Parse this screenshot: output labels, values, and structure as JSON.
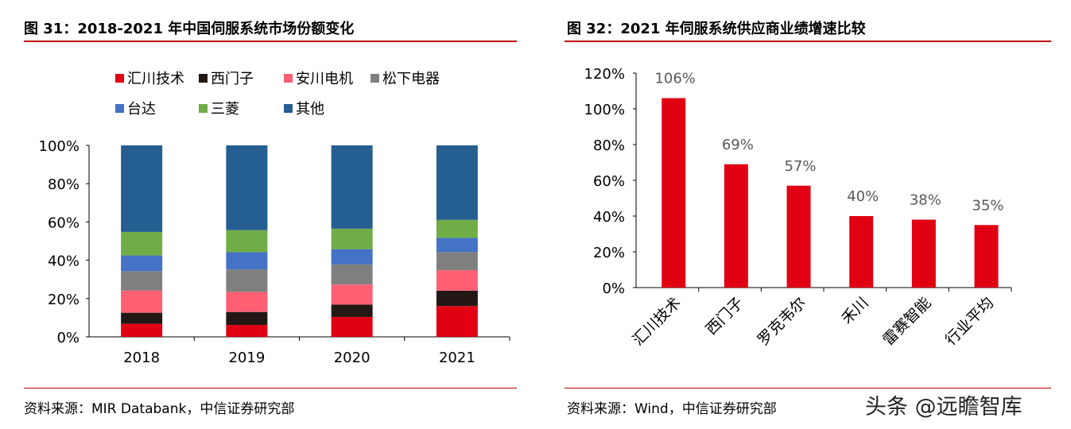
{
  "left": {
    "title": "图 31：2018-2021 年中国伺服系统市场份额变化",
    "source": "资料来源：MIR Databank，中信证券研究部"
  },
  "right": {
    "title": "图 32：2021 年伺服系统供应商业绩增速比较",
    "source": "资料来源：Wind，中信证券研究部"
  },
  "watermark": "头条 @远瞻智库",
  "colors": {
    "rule": "#c00000"
  },
  "chart_data": [
    {
      "type": "bar",
      "stacked": true,
      "categories": [
        "2018",
        "2019",
        "2020",
        "2021"
      ],
      "ylim": [
        0,
        100
      ],
      "yticks": [
        "0%",
        "20%",
        "40%",
        "60%",
        "80%",
        "100%"
      ],
      "legend": "top",
      "series": [
        {
          "name": "汇川技术",
          "color": "#e00012",
          "values": [
            6.8,
            6.2,
            10.4,
            16.1
          ]
        },
        {
          "name": "西门子",
          "color": "#231815",
          "values": [
            5.8,
            6.8,
            6.4,
            8.0
          ]
        },
        {
          "name": "安川电机",
          "color": "#ff5f73",
          "values": [
            11.6,
            10.5,
            10.5,
            10.7
          ]
        },
        {
          "name": "松下电器",
          "color": "#7f7f7f",
          "values": [
            10.1,
            11.7,
            10.5,
            9.5
          ]
        },
        {
          "name": "台达",
          "color": "#4472c4",
          "values": [
            8.2,
            9.0,
            8.0,
            7.4
          ]
        },
        {
          "name": "三菱",
          "color": "#70ad47",
          "values": [
            12.3,
            11.5,
            10.7,
            9.4
          ]
        },
        {
          "name": "其他",
          "color": "#255e91",
          "values": [
            45.2,
            44.3,
            43.5,
            38.9
          ]
        }
      ]
    },
    {
      "type": "bar",
      "categories": [
        "汇川技术",
        "西门子",
        "罗克韦尔",
        "禾川",
        "雷赛智能",
        "行业平均"
      ],
      "values": [
        106,
        69,
        57,
        40,
        38,
        35
      ],
      "labels": [
        "106%",
        "69%",
        "57%",
        "40%",
        "38%",
        "35%"
      ],
      "color": "#e00012",
      "ylim": [
        0,
        120
      ],
      "yticks": [
        "0%",
        "20%",
        "40%",
        "60%",
        "80%",
        "100%",
        "120%"
      ]
    }
  ]
}
